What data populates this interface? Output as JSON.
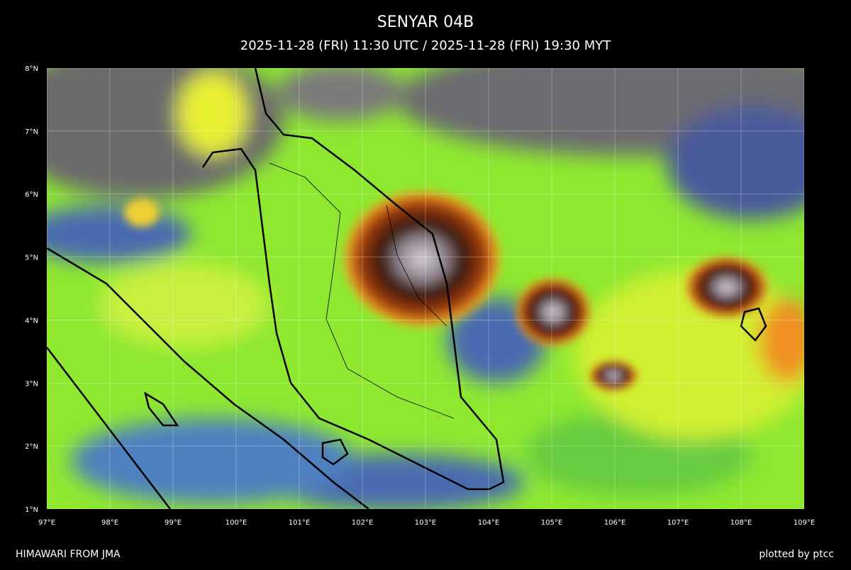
{
  "header": {
    "title": "SENYAR 04B",
    "subtitle": "2025-11-28 (FRI) 11:30 UTC / 2025-11-28 (FRI) 19:30 MYT"
  },
  "map": {
    "lon_range": [
      97,
      109
    ],
    "lat_range": [
      1,
      8
    ],
    "lon_ticks": [
      {
        "value": 97,
        "label": "97°E"
      },
      {
        "value": 98,
        "label": "98°E"
      },
      {
        "value": 99,
        "label": "99°E"
      },
      {
        "value": 100,
        "label": "100°E"
      },
      {
        "value": 101,
        "label": "101°E"
      },
      {
        "value": 102,
        "label": "102°E"
      },
      {
        "value": 103,
        "label": "103°E"
      },
      {
        "value": 104,
        "label": "104°E"
      },
      {
        "value": 105,
        "label": "105°E"
      },
      {
        "value": 106,
        "label": "106°E"
      },
      {
        "value": 107,
        "label": "107°E"
      },
      {
        "value": 108,
        "label": "108°E"
      },
      {
        "value": 109,
        "label": "109°E"
      }
    ],
    "lat_ticks": [
      {
        "value": 1,
        "label": "1°N"
      },
      {
        "value": 2,
        "label": "2°N"
      },
      {
        "value": 3,
        "label": "3°N"
      },
      {
        "value": 4,
        "label": "4°N"
      },
      {
        "value": 5,
        "label": "5°N"
      },
      {
        "value": 6,
        "label": "6°N"
      },
      {
        "value": 7,
        "label": "7°N"
      },
      {
        "value": 8,
        "label": "8°N"
      }
    ]
  },
  "footer": {
    "left": "HIMAWARI FROM JMA",
    "right": "plotted by ptcc"
  }
}
